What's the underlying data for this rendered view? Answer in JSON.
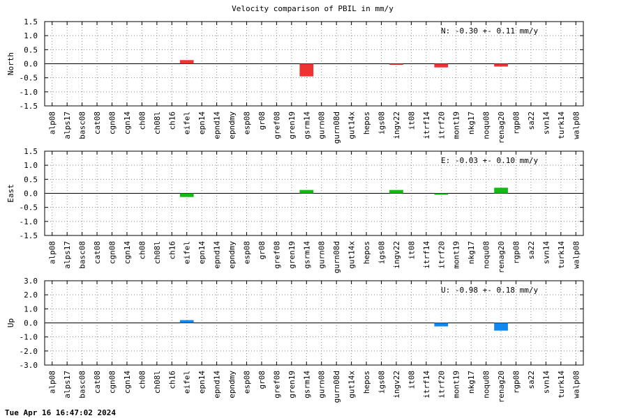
{
  "title": "Velocity comparison of PBIL in mm/y",
  "timestamp": "Tue Apr 16 16:47:02 2024",
  "chart_data": [
    {
      "type": "bar",
      "ylabel": "North",
      "annotation": "N:  -0.30 +-  0.11 mm/y",
      "color": "#ee3333",
      "ylim": [
        -1.5,
        1.5
      ],
      "yticks": [
        -1.5,
        -1.0,
        -0.5,
        0.0,
        0.5,
        1.0,
        1.5
      ],
      "yticklabels": [
        "-1.5",
        "-1.0",
        "-0.5",
        "0.0",
        "0.5",
        "1.0",
        "1.5"
      ],
      "grid": true,
      "categories": [
        "alp08",
        "alps17",
        "basc08",
        "cat08",
        "cgn08",
        "cgn14",
        "ch08",
        "ch08l",
        "ch16",
        "eifel",
        "epn14",
        "epnd14",
        "epndmy",
        "esp08",
        "gr08",
        "gref08",
        "gren19",
        "gsrm14",
        "gurn08",
        "gurn08d",
        "gut14x",
        "hepos",
        "igs08",
        "ingv22",
        "it08",
        "itrf14",
        "itrf20",
        "mont19",
        "nkg17",
        "noqu08",
        "renag20",
        "rgp08",
        "sa22",
        "svn14",
        "turk14",
        "walp08"
      ],
      "values": [
        null,
        null,
        null,
        null,
        null,
        null,
        null,
        null,
        null,
        0.13,
        null,
        null,
        null,
        null,
        null,
        null,
        null,
        -0.45,
        null,
        null,
        null,
        null,
        null,
        -0.03,
        null,
        null,
        -0.13,
        null,
        null,
        null,
        -0.1,
        null,
        null,
        null,
        null,
        null
      ]
    },
    {
      "type": "bar",
      "ylabel": "East",
      "annotation": "E:  -0.03 +-  0.10 mm/y",
      "color": "#11bb11",
      "ylim": [
        -1.5,
        1.5
      ],
      "yticks": [
        -1.5,
        -1.0,
        -0.5,
        0.0,
        0.5,
        1.0,
        1.5
      ],
      "yticklabels": [
        "-1.5",
        "-1.0",
        "-0.5",
        "0.0",
        "0.5",
        "1.0",
        "1.5"
      ],
      "grid": true,
      "categories": [
        "alp08",
        "alps17",
        "basc08",
        "cat08",
        "cgn08",
        "cgn14",
        "ch08",
        "ch08l",
        "ch16",
        "eifel",
        "epn14",
        "epnd14",
        "epndmy",
        "esp08",
        "gr08",
        "gref08",
        "gren19",
        "gsrm14",
        "gurn08",
        "gurn08d",
        "gut14x",
        "hepos",
        "igs08",
        "ingv22",
        "it08",
        "itrf14",
        "itrf20",
        "mont19",
        "nkg17",
        "noqu08",
        "renag20",
        "rgp08",
        "sa22",
        "svn14",
        "turk14",
        "walp08"
      ],
      "values": [
        null,
        null,
        null,
        null,
        null,
        null,
        null,
        null,
        null,
        -0.13,
        null,
        null,
        null,
        null,
        null,
        null,
        null,
        0.12,
        null,
        null,
        null,
        null,
        null,
        0.12,
        null,
        null,
        -0.05,
        null,
        null,
        null,
        0.2,
        null,
        null,
        null,
        null,
        null
      ]
    },
    {
      "type": "bar",
      "ylabel": "Up",
      "annotation": "U:  -0.98 +-  0.18 mm/y",
      "color": "#1188ee",
      "ylim": [
        -3.0,
        3.0
      ],
      "yticks": [
        -3.0,
        -2.0,
        -1.0,
        0.0,
        1.0,
        2.0,
        3.0
      ],
      "yticklabels": [
        "-3.0",
        "-2.0",
        "-1.0",
        "0.0",
        "1.0",
        "2.0",
        "3.0"
      ],
      "grid": true,
      "categories": [
        "alp08",
        "alps17",
        "basc08",
        "cat08",
        "cgn08",
        "cgn14",
        "ch08",
        "ch08l",
        "ch16",
        "eifel",
        "epn14",
        "epnd14",
        "epndmy",
        "esp08",
        "gr08",
        "gref08",
        "gren19",
        "gsrm14",
        "gurn08",
        "gurn08d",
        "gut14x",
        "hepos",
        "igs08",
        "ingv22",
        "it08",
        "itrf14",
        "itrf20",
        "mont19",
        "nkg17",
        "noqu08",
        "renag20",
        "rgp08",
        "sa22",
        "svn14",
        "turk14",
        "walp08"
      ],
      "values": [
        null,
        null,
        null,
        null,
        null,
        null,
        null,
        null,
        null,
        0.2,
        null,
        null,
        null,
        null,
        null,
        null,
        null,
        null,
        null,
        null,
        null,
        null,
        null,
        null,
        null,
        null,
        -0.25,
        null,
        null,
        null,
        -0.55,
        null,
        null,
        null,
        null,
        null
      ]
    }
  ]
}
